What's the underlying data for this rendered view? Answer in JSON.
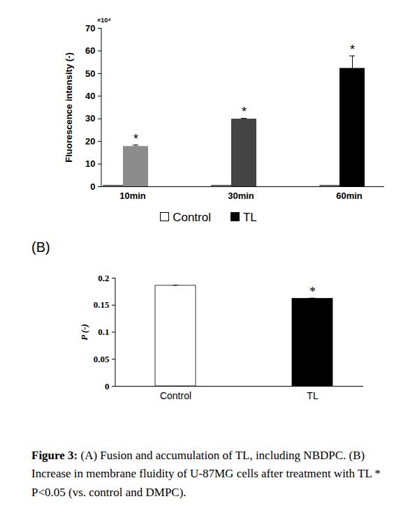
{
  "chart_data": [
    {
      "type": "bar",
      "label": "(A)",
      "y_label": "Fluorescence intensity (-)",
      "y_multiplier": "×10⁴",
      "categories": [
        "10min",
        "30min",
        "60min"
      ],
      "series": [
        {
          "name": "Control",
          "color": "#ffffff",
          "values": [
            0.5,
            0.5,
            0.5
          ]
        },
        {
          "name": "TL",
          "color": "#000000",
          "colors": [
            "#8c8c8c",
            "#444444",
            "#000000"
          ],
          "values": [
            17.8,
            29.9,
            52.3
          ],
          "errors": [
            0.6,
            0.3,
            5.5
          ],
          "significance": [
            "*",
            "*",
            "*"
          ]
        }
      ],
      "ylim": [
        0,
        70
      ],
      "yticks": [
        0,
        10,
        20,
        30,
        40,
        50,
        60,
        70
      ],
      "legend": "bottom"
    },
    {
      "type": "bar",
      "label": "(B)",
      "y_label": "P (-)",
      "categories": [
        "Control",
        "TL"
      ],
      "values": [
        0.186,
        0.162
      ],
      "errors": [
        0.001,
        0.001
      ],
      "colors": [
        "#ffffff",
        "#000000"
      ],
      "significance": [
        null,
        "*"
      ],
      "ylim": [
        0,
        0.2
      ],
      "yticks": [
        0,
        0.05,
        0.1,
        0.15,
        0.2
      ]
    }
  ],
  "caption": {
    "label": "Figure 3:",
    "text": "(A) Fusion and accumulation of TL, including NBDPC. (B) Increase in membrane fluidity of U-87MG cells after treatment with TL * P<0.05 (vs. control and DMPC)."
  }
}
